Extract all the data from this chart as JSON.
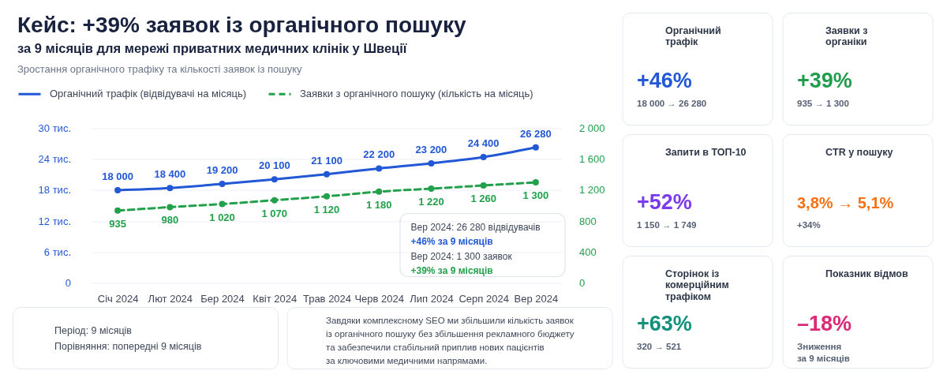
{
  "chart_data": [
    {
      "type": "other",
      "title": "Кейс: +39% заявок із органічного пошуку",
      "subtitle": "за 9 місяців для мережі приватних медичних клінік у Швеції"
    },
    {
      "type": "line",
      "title": "Зростання органічного трафіку та кількості заявок із пошуку",
      "categories": [
        "Січ 2024",
        "Лют 2024",
        "Бер 2024",
        "Квіт 2024",
        "Трав 2024",
        "Черв 2024",
        "Лип 2024",
        "Серп 2024",
        "Вер 2024"
      ],
      "series": [
        {
          "name": "Органічний трафік (відвідувачі на місяць)",
          "color": "#2257d6",
          "values": [
            18,
            18.4,
            19.2,
            20.1,
            21.1,
            22.2,
            23.2,
            24.4,
            26.28
          ]
        },
        {
          "name": "Заявки з органічного пошуку (кількість на місяць)",
          "color": "#22a04b",
          "axis": "y2",
          "line_style": "dashed",
          "values": [
            935,
            980,
            1020,
            1070,
            1120,
            1180,
            1220,
            1260,
            1300
          ],
          "value_labels": [
            "935",
            "980",
            "1 020",
            "1 070",
            "1 120",
            "1 180",
            "1 220",
            "1 260",
            "1 300"
          ]
        }
      ],
      "ylim": [
        0,
        30
      ],
      "yticks": [
        0,
        {
          "value": 6,
          "label": "6 тис."
        },
        {
          "value": 12,
          "label": "12 тис."
        },
        {
          "value": 18,
          "label": "18 тис."
        },
        {
          "value": 24,
          "label": "24 тис."
        },
        {
          "value": 30,
          "label": "30 тис."
        }
      ],
      "y2lim": [
        0,
        2000
      ],
      "y2ticks": [
        0,
        400,
        800,
        {
          "value": 1200,
          "label": "1 200"
        },
        {
          "value": 1600,
          "label": "1 600"
        },
        {
          "value": 2000,
          "label": "2 000"
        }
      ],
      "grid": "y",
      "legend": "top left",
      "marker": "circle",
      "line_style": "solid",
      "annotations": [
        {
          "text": "18 000",
          "x": "Січ 2024",
          "y": 18
        },
        {
          "text": "18 400",
          "x": "Лют 2024",
          "y": 18.4
        },
        {
          "text": "19 200",
          "x": "Бер 2024",
          "y": 19.2
        },
        {
          "text": "20 100",
          "x": "Квіт 2024",
          "y": 20.1
        },
        {
          "text": "21 100",
          "x": "Трав 2024",
          "y": 21.1
        },
        {
          "text": "22 200",
          "x": "Черв 2024",
          "y": 22.2
        },
        {
          "text": "23 200",
          "x": "Лип 2024",
          "y": 23.2
        },
        {
          "text": "24 400",
          "x": "Серп 2024",
          "y": 24.4
        },
        {
          "text": "26 280",
          "x": "Вер 2024",
          "y": 26.28
        },
        "Вер 2024: 26 280 відвідувачів",
        "+46% за 9 місяців",
        "Вер 2024: 1 300 заявок",
        "+39% за 9 місяців"
      ]
    },
    {
      "type": "other",
      "annotations": [
        "Період: 9 місяців",
        "Порівняння: попередні 9 місяців"
      ]
    },
    {
      "type": "other",
      "annotations": [
        "Завдяки комплексному SEO ми збільшили кількість заявок",
        "із органічного пошуку без збільшення рекламного бюджету",
        "та забезпечили стабільний приплив нових пацієнтів",
        "за ключовими медичними напрямами."
      ]
    },
    {
      "type": "other",
      "title": "Органічний трафік",
      "annotations": [
        "+46%",
        "18 000 → 26 280"
      ]
    },
    {
      "type": "other",
      "title": "Заявки з органіки",
      "annotations": [
        "+39%",
        "935 → 1 300"
      ]
    },
    {
      "type": "other",
      "title": "Запити в ТОП-10",
      "annotations": [
        "+52%",
        "1 150 → 1 749"
      ]
    },
    {
      "type": "other",
      "title": "CTR у пошуку",
      "annotations": [
        "3,8% → 5,1%",
        "+34%"
      ]
    },
    {
      "type": "other",
      "title": "Сторінок із комерційним трафіком",
      "annotations": [
        "+63%",
        "320 → 521"
      ]
    },
    {
      "type": "other",
      "title": "Показник відмов",
      "annotations": [
        "–18%",
        "Зниження",
        "за 9 місяців"
      ]
    }
  ]
}
